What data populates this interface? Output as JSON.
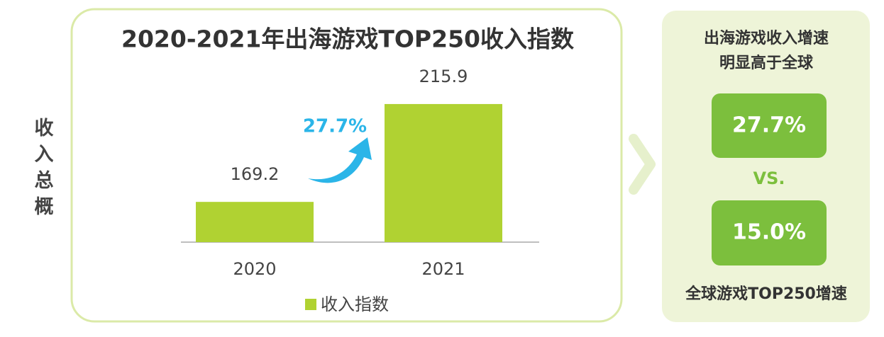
{
  "side_label": "收入总概",
  "chart_data": {
    "type": "bar",
    "title": "2020-2021年出海游戏TOP250收入指数",
    "categories": [
      "2020",
      "2021"
    ],
    "series": [
      {
        "name": "收入指数",
        "color": "#b0d232",
        "values": [
          169.2,
          215.9
        ]
      }
    ],
    "ylim": [
      150,
      225
    ],
    "annotation": "27.7%",
    "annotation_color": "#2bb5e8"
  },
  "comparison": {
    "title_lines": [
      "出海游戏收入增速",
      "明显高于全球"
    ],
    "first": "27.7%",
    "separator": "VS.",
    "second": "15.0%",
    "caption": "全球游戏TOP250增速"
  }
}
